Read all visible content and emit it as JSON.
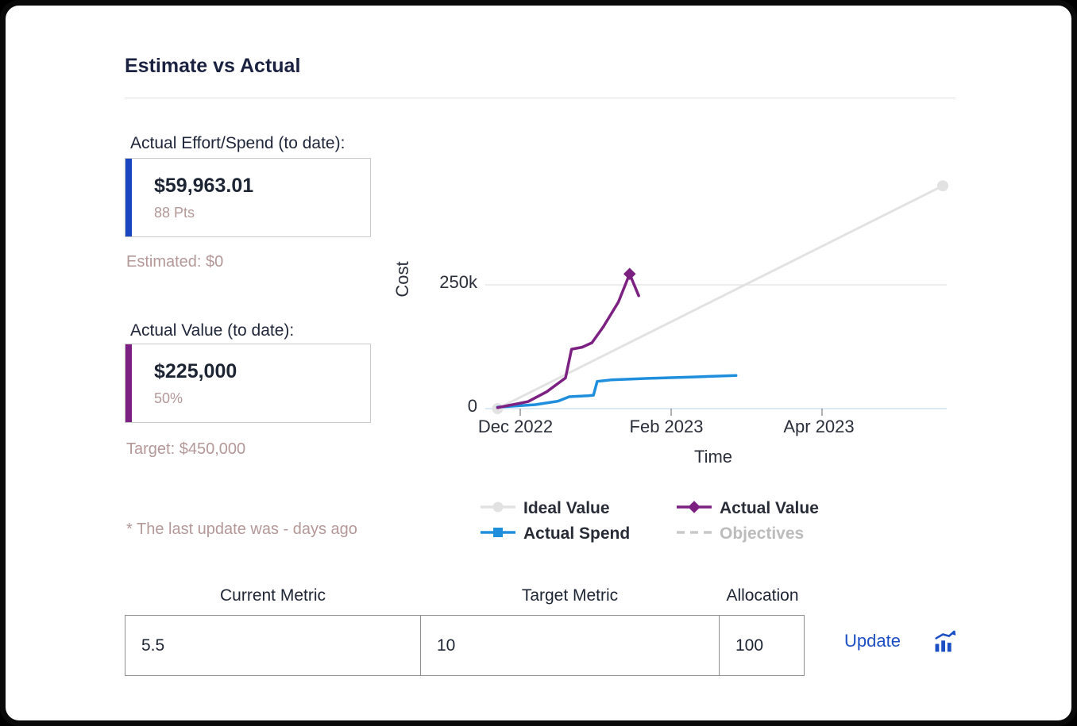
{
  "card": {
    "title": "Estimate vs Actual"
  },
  "effort": {
    "label": "Actual Effort/Spend (to date):",
    "value": "$59,963.01",
    "sub": "88 Pts",
    "note": "Estimated: $0",
    "accent_color": "#1b46c2"
  },
  "actual_value": {
    "label": "Actual Value (to date):",
    "value": "$225,000",
    "sub": "50%",
    "note": "Target: $450,000",
    "accent_color": "#7c2181"
  },
  "footnote": "* The last update was - days ago",
  "chart_data": {
    "type": "line",
    "title": "",
    "xlabel": "Time",
    "ylabel": "Cost",
    "x_unit": "months since Dec 2022",
    "xlim": [
      -0.35,
      5.7
    ],
    "ylim": [
      0,
      480000
    ],
    "grid": true,
    "legend_position": "bottom",
    "x_ticks": [
      {
        "pos": 0,
        "label": "Dec 2022"
      },
      {
        "pos": 2,
        "label": "Feb 2023"
      },
      {
        "pos": 4,
        "label": "Apr 2023"
      }
    ],
    "y_ticks": [
      {
        "value": 250000,
        "label": "250k"
      },
      {
        "value": 0,
        "label": "0"
      }
    ],
    "series": [
      {
        "name": "Ideal Value",
        "color": "#e2e2e2",
        "width": 3,
        "marker": "circle",
        "points": [
          [
            -0.3,
            0
          ],
          [
            5.6,
            450000
          ]
        ],
        "markers": [
          [
            -0.3,
            0
          ],
          [
            5.6,
            450000
          ]
        ]
      },
      {
        "name": "Actual Spend",
        "color": "#1f8fdd",
        "width": 3.5,
        "marker": "square",
        "points": [
          [
            -0.3,
            3000
          ],
          [
            0.2,
            8000
          ],
          [
            0.5,
            15000
          ],
          [
            0.65,
            24000
          ],
          [
            0.9,
            26000
          ],
          [
            0.97,
            27000
          ],
          [
            1.02,
            55000
          ],
          [
            1.2,
            58000
          ],
          [
            1.7,
            61000
          ],
          [
            2.3,
            64000
          ],
          [
            2.86,
            67000
          ]
        ],
        "markers": []
      },
      {
        "name": "Actual Value",
        "color": "#7c2181",
        "width": 3.5,
        "marker": "diamond",
        "points": [
          [
            -0.3,
            2000
          ],
          [
            0.1,
            14000
          ],
          [
            0.35,
            34000
          ],
          [
            0.6,
            62000
          ],
          [
            0.68,
            120000
          ],
          [
            0.82,
            124000
          ],
          [
            0.95,
            133000
          ],
          [
            1.1,
            165000
          ],
          [
            1.3,
            215000
          ],
          [
            1.45,
            272000
          ],
          [
            1.57,
            228000
          ]
        ],
        "markers": [
          [
            1.45,
            272000
          ]
        ]
      },
      {
        "name": "Objectives",
        "color": "#c9c9c9",
        "width": 3.5,
        "dashed": true,
        "points": [],
        "markers": []
      }
    ]
  },
  "legend": [
    {
      "label": "Ideal Value",
      "marker": "circle",
      "color": "#e2e2e2",
      "muted": false
    },
    {
      "label": "Actual Value",
      "marker": "diamond",
      "color": "#7c2181",
      "muted": false
    },
    {
      "label": "Actual Spend",
      "marker": "square",
      "color": "#1f8fdd",
      "muted": false
    },
    {
      "label": "Objectives",
      "marker": "dash",
      "color": "#c9c9c9",
      "muted": true
    }
  ],
  "form": {
    "headers": [
      "Current Metric",
      "Target Metric",
      "Allocation"
    ],
    "values": [
      "5.5",
      "10",
      "100"
    ],
    "update_label": "Update"
  }
}
